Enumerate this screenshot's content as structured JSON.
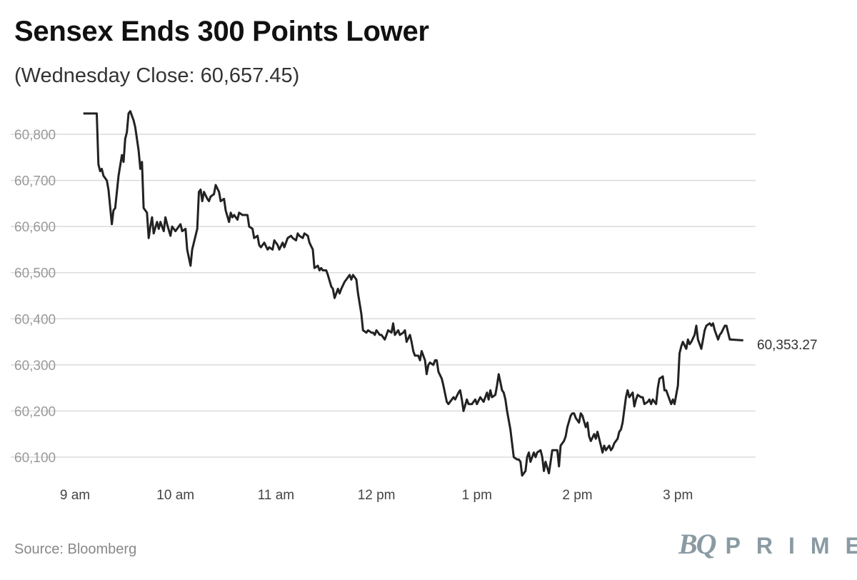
{
  "chart_data": {
    "type": "line",
    "title": "Sensex Ends 300 Points Lower",
    "subtitle": "(Wednesday Close: 60,657.45)",
    "source": "Source: Bloomberg",
    "xlabel": "",
    "ylabel": "",
    "ylim": [
      60050,
      60850
    ],
    "grid": true,
    "legend": "none",
    "line_color": "#222222",
    "y_ticks": [
      "60,100",
      "60,200",
      "60,300",
      "60,400",
      "60,500",
      "60,600",
      "60,700",
      "60,800"
    ],
    "y_tick_values": [
      60100,
      60200,
      60300,
      60400,
      60500,
      60600,
      60700,
      60800
    ],
    "x_ticks": [
      {
        "label": "9 am",
        "time": "09:00"
      },
      {
        "label": "10 am",
        "time": "10:00"
      },
      {
        "label": "11 am",
        "time": "11:00"
      },
      {
        "label": "12 pm",
        "time": "12:00"
      },
      {
        "label": "1 pm",
        "time": "13:00"
      },
      {
        "label": "2 pm",
        "time": "14:00"
      },
      {
        "label": "3 pm",
        "time": "15:00"
      }
    ],
    "end_label": "60,353.27",
    "series": [
      {
        "points": [
          [
            "09:05",
            60845
          ],
          [
            "09:13",
            60845
          ],
          [
            "09:14",
            60735
          ],
          [
            "09:15",
            60720
          ],
          [
            "09:16",
            60725
          ],
          [
            "09:17",
            60710
          ],
          [
            "09:19",
            60700
          ],
          [
            "09:20",
            60680
          ],
          [
            "09:22",
            60605
          ],
          [
            "09:23",
            60635
          ],
          [
            "09:24",
            60640
          ],
          [
            "09:26",
            60710
          ],
          [
            "09:28",
            60755
          ],
          [
            "09:29",
            60740
          ],
          [
            "09:30",
            60790
          ],
          [
            "09:31",
            60805
          ],
          [
            "09:32",
            60845
          ],
          [
            "09:33",
            60850
          ],
          [
            "09:35",
            60830
          ],
          [
            "09:36",
            60815
          ],
          [
            "09:38",
            60765
          ],
          [
            "09:39",
            60725
          ],
          [
            "09:40",
            60740
          ],
          [
            "09:41",
            60640
          ],
          [
            "09:43",
            60630
          ],
          [
            "09:44",
            60575
          ],
          [
            "09:45",
            60600
          ],
          [
            "09:46",
            60620
          ],
          [
            "09:47",
            60585
          ],
          [
            "09:49",
            60610
          ],
          [
            "09:50",
            60595
          ],
          [
            "09:51",
            60610
          ],
          [
            "09:53",
            60590
          ],
          [
            "09:54",
            60620
          ],
          [
            "09:55",
            60605
          ],
          [
            "09:57",
            60580
          ],
          [
            "09:58",
            60600
          ],
          [
            "10:00",
            60590
          ],
          [
            "10:01",
            60595
          ],
          [
            "10:03",
            60605
          ],
          [
            "10:04",
            60590
          ],
          [
            "10:06",
            60595
          ],
          [
            "10:07",
            60550
          ],
          [
            "10:09",
            60515
          ],
          [
            "10:10",
            60550
          ],
          [
            "10:12",
            60580
          ],
          [
            "10:13",
            60595
          ],
          [
            "10:14",
            60675
          ],
          [
            "10:15",
            60680
          ],
          [
            "10:16",
            60655
          ],
          [
            "10:17",
            60675
          ],
          [
            "10:19",
            60660
          ],
          [
            "10:20",
            60655
          ],
          [
            "10:21",
            60665
          ],
          [
            "10:23",
            60670
          ],
          [
            "10:24",
            60690
          ],
          [
            "10:26",
            60675
          ],
          [
            "10:27",
            60655
          ],
          [
            "10:29",
            60660
          ],
          [
            "10:30",
            60635
          ],
          [
            "10:32",
            60610
          ],
          [
            "10:33",
            60630
          ],
          [
            "10:34",
            60620
          ],
          [
            "10:35",
            60625
          ],
          [
            "10:37",
            60615
          ],
          [
            "10:38",
            60630
          ],
          [
            "10:40",
            60625
          ],
          [
            "10:42",
            60625
          ],
          [
            "10:43",
            60625
          ],
          [
            "10:44",
            60600
          ],
          [
            "10:46",
            60595
          ],
          [
            "10:47",
            60575
          ],
          [
            "10:49",
            60580
          ],
          [
            "10:50",
            60560
          ],
          [
            "10:51",
            60555
          ],
          [
            "10:53",
            60565
          ],
          [
            "10:55",
            60550
          ],
          [
            "10:56",
            60555
          ],
          [
            "10:58",
            60550
          ],
          [
            "10:59",
            60570
          ],
          [
            "11:01",
            60560
          ],
          [
            "11:02",
            60550
          ],
          [
            "11:04",
            60565
          ],
          [
            "11:05",
            60555
          ],
          [
            "11:07",
            60575
          ],
          [
            "11:09",
            60580
          ],
          [
            "11:10",
            60575
          ],
          [
            "11:12",
            60570
          ],
          [
            "11:13",
            60585
          ],
          [
            "11:14",
            60580
          ],
          [
            "11:16",
            60575
          ],
          [
            "11:17",
            60585
          ],
          [
            "11:19",
            60580
          ],
          [
            "11:20",
            60565
          ],
          [
            "11:22",
            60550
          ],
          [
            "11:23",
            60510
          ],
          [
            "11:25",
            60515
          ],
          [
            "11:26",
            60505
          ],
          [
            "11:27",
            60510
          ],
          [
            "11:28",
            60505
          ],
          [
            "11:30",
            60505
          ],
          [
            "11:31",
            60495
          ],
          [
            "11:33",
            60470
          ],
          [
            "11:34",
            60465
          ],
          [
            "11:35",
            60445
          ],
          [
            "11:37",
            60465
          ],
          [
            "11:38",
            60455
          ],
          [
            "11:39",
            60465
          ],
          [
            "11:41",
            60480
          ],
          [
            "11:42",
            60485
          ],
          [
            "11:44",
            60495
          ],
          [
            "11:45",
            60485
          ],
          [
            "11:46",
            60495
          ],
          [
            "11:48",
            60485
          ],
          [
            "11:49",
            60455
          ],
          [
            "11:51",
            60410
          ],
          [
            "11:52",
            60375
          ],
          [
            "11:54",
            60370
          ],
          [
            "11:55",
            60375
          ],
          [
            "11:57",
            60370
          ],
          [
            "11:58",
            60370
          ],
          [
            "11:59",
            60365
          ],
          [
            "12:00",
            60375
          ],
          [
            "12:02",
            60365
          ],
          [
            "12:03",
            60365
          ],
          [
            "12:05",
            60355
          ],
          [
            "12:06",
            60365
          ],
          [
            "12:07",
            60375
          ],
          [
            "12:09",
            60370
          ],
          [
            "12:10",
            60390
          ],
          [
            "12:11",
            60365
          ],
          [
            "12:13",
            60375
          ],
          [
            "12:14",
            60365
          ],
          [
            "12:16",
            60370
          ],
          [
            "12:17",
            60375
          ],
          [
            "12:18",
            60350
          ],
          [
            "12:20",
            60365
          ],
          [
            "12:21",
            60350
          ],
          [
            "12:22",
            60330
          ],
          [
            "12:23",
            60320
          ],
          [
            "12:25",
            60320
          ],
          [
            "12:26",
            60310
          ],
          [
            "12:27",
            60330
          ],
          [
            "12:29",
            60310
          ],
          [
            "12:30",
            60280
          ],
          [
            "12:31",
            60300
          ],
          [
            "12:32",
            60305
          ],
          [
            "12:34",
            60300
          ],
          [
            "12:35",
            60310
          ],
          [
            "12:36",
            60310
          ],
          [
            "12:37",
            60285
          ],
          [
            "12:39",
            60270
          ],
          [
            "12:40",
            60255
          ],
          [
            "12:42",
            60220
          ],
          [
            "12:43",
            60215
          ],
          [
            "12:45",
            60225
          ],
          [
            "12:46",
            60230
          ],
          [
            "12:47",
            60225
          ],
          [
            "12:49",
            60240
          ],
          [
            "12:50",
            60245
          ],
          [
            "12:51",
            60225
          ],
          [
            "12:52",
            60200
          ],
          [
            "12:54",
            60225
          ],
          [
            "12:55",
            60215
          ],
          [
            "12:57",
            60215
          ],
          [
            "12:58",
            60220
          ],
          [
            "12:59",
            60225
          ],
          [
            "13:00",
            60215
          ],
          [
            "13:02",
            60230
          ],
          [
            "13:03",
            60225
          ],
          [
            "13:04",
            60220
          ],
          [
            "13:06",
            60240
          ],
          [
            "13:07",
            60225
          ],
          [
            "13:08",
            60245
          ],
          [
            "13:09",
            60230
          ],
          [
            "13:11",
            60235
          ],
          [
            "13:12",
            60255
          ],
          [
            "13:13",
            60280
          ],
          [
            "13:15",
            60245
          ],
          [
            "13:16",
            60240
          ],
          [
            "13:17",
            60225
          ],
          [
            "13:18",
            60200
          ],
          [
            "13:20",
            60160
          ],
          [
            "13:21",
            60130
          ],
          [
            "13:22",
            60100
          ],
          [
            "13:24",
            60095
          ],
          [
            "13:25",
            60095
          ],
          [
            "13:26",
            60090
          ],
          [
            "13:27",
            60060
          ],
          [
            "13:29",
            60070
          ],
          [
            "13:30",
            60100
          ],
          [
            "13:31",
            60110
          ],
          [
            "13:32",
            60090
          ],
          [
            "13:34",
            60110
          ],
          [
            "13:35",
            60100
          ],
          [
            "13:36",
            60110
          ],
          [
            "13:38",
            60115
          ],
          [
            "13:39",
            60100
          ],
          [
            "13:40",
            60070
          ],
          [
            "13:41",
            60090
          ],
          [
            "13:43",
            60065
          ],
          [
            "13:44",
            60090
          ],
          [
            "13:45",
            60115
          ],
          [
            "13:47",
            60115
          ],
          [
            "13:48",
            60115
          ],
          [
            "13:49",
            60080
          ],
          [
            "13:50",
            60125
          ],
          [
            "13:52",
            60135
          ],
          [
            "13:53",
            60145
          ],
          [
            "13:54",
            60165
          ],
          [
            "13:56",
            60190
          ],
          [
            "13:57",
            60195
          ],
          [
            "13:58",
            60195
          ],
          [
            "13:59",
            60185
          ],
          [
            "14:01",
            60175
          ],
          [
            "14:02",
            60195
          ],
          [
            "14:03",
            60190
          ],
          [
            "14:05",
            60165
          ],
          [
            "14:06",
            60175
          ],
          [
            "14:07",
            60145
          ],
          [
            "14:08",
            60135
          ],
          [
            "14:10",
            60150
          ],
          [
            "14:11",
            60140
          ],
          [
            "14:12",
            60155
          ],
          [
            "14:13",
            60140
          ],
          [
            "14:15",
            60110
          ],
          [
            "14:16",
            60125
          ],
          [
            "14:17",
            60115
          ],
          [
            "14:19",
            60125
          ],
          [
            "14:20",
            60115
          ],
          [
            "14:21",
            60120
          ],
          [
            "14:22",
            60130
          ],
          [
            "14:24",
            60140
          ],
          [
            "14:25",
            60155
          ],
          [
            "14:26",
            60160
          ],
          [
            "14:27",
            60175
          ],
          [
            "14:29",
            60230
          ],
          [
            "14:30",
            60245
          ],
          [
            "14:31",
            60230
          ],
          [
            "14:33",
            60240
          ],
          [
            "14:34",
            60210
          ],
          [
            "14:35",
            60225
          ],
          [
            "14:36",
            60235
          ],
          [
            "14:38",
            60230
          ],
          [
            "14:39",
            60230
          ],
          [
            "14:40",
            60215
          ],
          [
            "14:42",
            60220
          ],
          [
            "14:43",
            60225
          ],
          [
            "14:44",
            60215
          ],
          [
            "14:45",
            60225
          ],
          [
            "14:47",
            60215
          ],
          [
            "14:48",
            60250
          ],
          [
            "14:49",
            60270
          ],
          [
            "14:51",
            60275
          ],
          [
            "14:52",
            60245
          ],
          [
            "14:53",
            60245
          ],
          [
            "14:54",
            60235
          ],
          [
            "14:56",
            60215
          ],
          [
            "14:57",
            60225
          ],
          [
            "14:58",
            60215
          ],
          [
            "15:00",
            60255
          ],
          [
            "15:01",
            60325
          ],
          [
            "15:02",
            60340
          ],
          [
            "15:03",
            60350
          ],
          [
            "15:05",
            60335
          ],
          [
            "15:06",
            60355
          ],
          [
            "15:07",
            60345
          ],
          [
            "15:08",
            60350
          ],
          [
            "15:10",
            60365
          ],
          [
            "15:11",
            60385
          ],
          [
            "15:12",
            60355
          ],
          [
            "15:14",
            60335
          ],
          [
            "15:15",
            60355
          ],
          [
            "15:16",
            60375
          ],
          [
            "15:17",
            60385
          ],
          [
            "15:19",
            60390
          ],
          [
            "15:20",
            60385
          ],
          [
            "15:21",
            60390
          ],
          [
            "15:22",
            60375
          ],
          [
            "15:24",
            60355
          ],
          [
            "15:25",
            60365
          ],
          [
            "15:26",
            60370
          ],
          [
            "15:28",
            60385
          ],
          [
            "15:29",
            60385
          ],
          [
            "15:30",
            60370
          ],
          [
            "15:31",
            60355
          ],
          [
            "15:39",
            60353.27
          ]
        ]
      }
    ]
  },
  "logo": {
    "text": "BQ PRIME",
    "mark": "BQ",
    "word": "PRIME",
    "color": "#8a9aa3"
  }
}
